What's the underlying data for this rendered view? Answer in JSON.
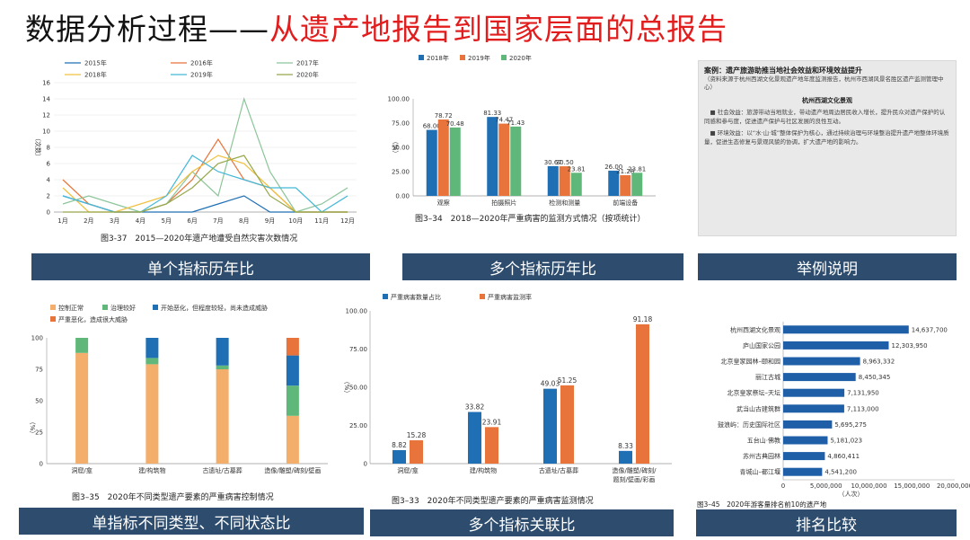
{
  "title": {
    "part1": "数据分析过程——",
    "part2": "从遗产地报告到国家层面的总报告"
  },
  "colors": {
    "title_red": "#e21d1d",
    "banner": "#2e4d6e",
    "blue": "#1f6fb5",
    "orange": "#e8743b",
    "green": "#5fb87a",
    "light_orange": "#f2ae6a",
    "dark_blue": "#1f5fa8"
  },
  "banners": {
    "b1": "单个指标历年比",
    "b2": "多个指标历年比",
    "b3": "举例说明",
    "b4": "单指标不同类型、不同状态比",
    "b5": "多个指标关联比",
    "b6": "排名比较"
  },
  "example": {
    "title": "案例：遗产旅游助推当地社会效益和环境效益提升",
    "subtitle": "（资料来源于杭州西湖文化景观遗产地年度监测报告，杭州市西湖风景名胜区遗产监测管理中心）",
    "section": "杭州西湖文化景观",
    "para1": "■ 社会效益：旅游带动当地就业，带动遗产地周边居民收入增长，提升民众对遗产保护的认同感和参与度，促进遗产保护与社区发展的良性互动。",
    "para2": "■ 环境效益：以“水·山·城”整体保护为核心，通过持续治理与环境整治提升遗产地整体环境质量，促进生态修复与景观风貌的协调，扩大遗产地的影响力。"
  },
  "chart_data": [
    {
      "type": "line",
      "caption": "图3-37　2015—2020年遗产地遭受自然灾害次数情况",
      "ylabel": "（次数）",
      "categories": [
        "1月",
        "2月",
        "3月",
        "4月",
        "5月",
        "6月",
        "7月",
        "8月",
        "9月",
        "10月",
        "11月",
        "12月"
      ],
      "ylim": [
        0,
        16
      ],
      "yticks": [
        0,
        2,
        4,
        6,
        8,
        10,
        12,
        14,
        16
      ],
      "legend": "top",
      "series": [
        {
          "name": "2015年",
          "color": "#1f6fb5",
          "values": [
            2,
            1,
            0,
            0,
            0,
            0,
            1,
            2,
            0,
            0,
            0,
            0
          ]
        },
        {
          "name": "2016年",
          "color": "#e8743b",
          "values": [
            4,
            1,
            0,
            0,
            1,
            4,
            9,
            4,
            3,
            0,
            0,
            0
          ]
        },
        {
          "name": "2017年",
          "color": "#8cc59a",
          "values": [
            1,
            2,
            1,
            0,
            1,
            5,
            2,
            14,
            5,
            0,
            1,
            3
          ]
        },
        {
          "name": "2018年",
          "color": "#f0c040",
          "values": [
            3,
            0,
            0,
            1,
            2,
            5,
            7,
            6,
            3,
            0,
            0,
            0
          ]
        },
        {
          "name": "2019年",
          "color": "#45b8d8",
          "values": [
            2,
            1,
            0,
            0,
            2,
            7,
            5,
            4,
            3,
            3,
            0,
            2
          ]
        },
        {
          "name": "2020年",
          "color": "#96a84a",
          "values": [
            0,
            0,
            0,
            0,
            1,
            3,
            6,
            7,
            2,
            0,
            0,
            0
          ]
        }
      ]
    },
    {
      "type": "bar",
      "caption": "图3–34　2018—2020年严重病害的监测方式情况（按项统计）",
      "ylabel": "（%）",
      "categories": [
        "观察",
        "拍摄照片",
        "检测和测量",
        "前端设备"
      ],
      "ylim": [
        0,
        100
      ],
      "yticks": [
        0,
        25,
        50,
        75,
        100
      ],
      "legend": "top-left",
      "series": [
        {
          "name": "2018年",
          "color": "#1f6fb5",
          "values": [
            68.0,
            81.33,
            30.67,
            26.0
          ]
        },
        {
          "name": "2019年",
          "color": "#e8743b",
          "values": [
            78.72,
            74.47,
            30.5,
            21.28
          ]
        },
        {
          "name": "2020年",
          "color": "#5fb87a",
          "values": [
            70.48,
            71.43,
            23.81,
            23.81
          ]
        }
      ],
      "labels": [
        [
          "68.00",
          "81.33",
          "30.67",
          "26.00"
        ],
        [
          "78.72",
          "74.47",
          "30.50",
          "21.28"
        ],
        [
          "70.48",
          "71.43",
          "23.81",
          "23.81"
        ]
      ]
    },
    {
      "type": "bar",
      "stacked": true,
      "caption": "图3–35　2020年不同类型遗产要素的严重病害控制情况",
      "ylabel": "（%）",
      "categories": [
        "洞窟/龛",
        "建/构筑物",
        "古遗址/古墓葬",
        "造像/雕塑/碑刻/壁画"
      ],
      "ylim": [
        0,
        100
      ],
      "yticks": [
        0,
        25,
        50,
        75,
        100
      ],
      "legend": "top-left",
      "series": [
        {
          "name": "控制正常",
          "color": "#f2ae6a",
          "values": [
            88,
            79,
            75,
            38
          ]
        },
        {
          "name": "治理较好",
          "color": "#5fb87a",
          "values": [
            12,
            5,
            3,
            24
          ]
        },
        {
          "name": "开始恶化，但程度较轻，尚未造成威胁",
          "color": "#1f6fb5",
          "values": [
            0,
            16,
            22,
            24
          ]
        },
        {
          "name": "严重恶化，造成很大威胁",
          "color": "#e8743b",
          "values": [
            0,
            0,
            0,
            14
          ]
        }
      ]
    },
    {
      "type": "bar",
      "caption": "图3–33　2020年不同类型遗产要素的严重病害监测情况",
      "ylabel": "（%）",
      "categories": [
        "洞窟/龛",
        "建/构筑物",
        "古遗址/古墓葬",
        "造像/雕塑/碑刻/题刻/壁画/彩画"
      ],
      "tick_lines": [
        [
          "洞窟/龛"
        ],
        [
          "建/构筑物"
        ],
        [
          "古遗址/古墓葬"
        ],
        [
          "造像/雕塑/碑刻/",
          "题刻/壁画/彩画"
        ]
      ],
      "ylim": [
        0,
        100
      ],
      "yticks": [
        0,
        25,
        50,
        75,
        100
      ],
      "ytick_labels": [
        "0",
        "25.00",
        "50.00",
        "75.00",
        "100.00"
      ],
      "legend": "top-left",
      "series": [
        {
          "name": "严重病害数量占比",
          "color": "#1f6fb5",
          "values": [
            8.82,
            33.82,
            49.03,
            8.33
          ]
        },
        {
          "name": "严重病害监测率",
          "color": "#e8743b",
          "values": [
            15.28,
            23.91,
            51.25,
            91.18
          ]
        }
      ],
      "labels": [
        [
          "8.82",
          "33.82",
          "49.03",
          "8.33"
        ],
        [
          "15.28",
          "23.91",
          "51.25",
          "91.18"
        ]
      ]
    },
    {
      "type": "bar",
      "orientation": "horizontal",
      "caption": "图3–45　2020年游客量排名前10的遗产地",
      "xlabel": "（人次）",
      "categories": [
        "杭州西湖文化景观",
        "庐山国家公园",
        "北京皇家园林–颐和园",
        "丽江古城",
        "北京皇家祭坛–天坛",
        "武当山古建筑群",
        "鼓浪屿：历史国际社区",
        "五台山·佛教",
        "苏州古典园林",
        "青城山–都江堰"
      ],
      "values": [
        14637700,
        12303950,
        8963332,
        8450345,
        7131950,
        7113000,
        5695275,
        5181023,
        4860411,
        4541200
      ],
      "labels": [
        "14,637,700",
        "12,303,950",
        "8,963,332",
        "8,450,345",
        "7,131,950",
        "7,113,000",
        "5,695,275",
        "5,181,023",
        "4,860,411",
        "4,541,200"
      ],
      "xlim": [
        0,
        20000000
      ],
      "xticks": [
        0,
        5000000,
        10000000,
        15000000,
        20000000
      ],
      "xtick_labels": [
        "0",
        "5,000,000",
        "10,000,000",
        "15,000,000",
        "20,000,000"
      ],
      "color": "#1f5fa8"
    }
  ]
}
